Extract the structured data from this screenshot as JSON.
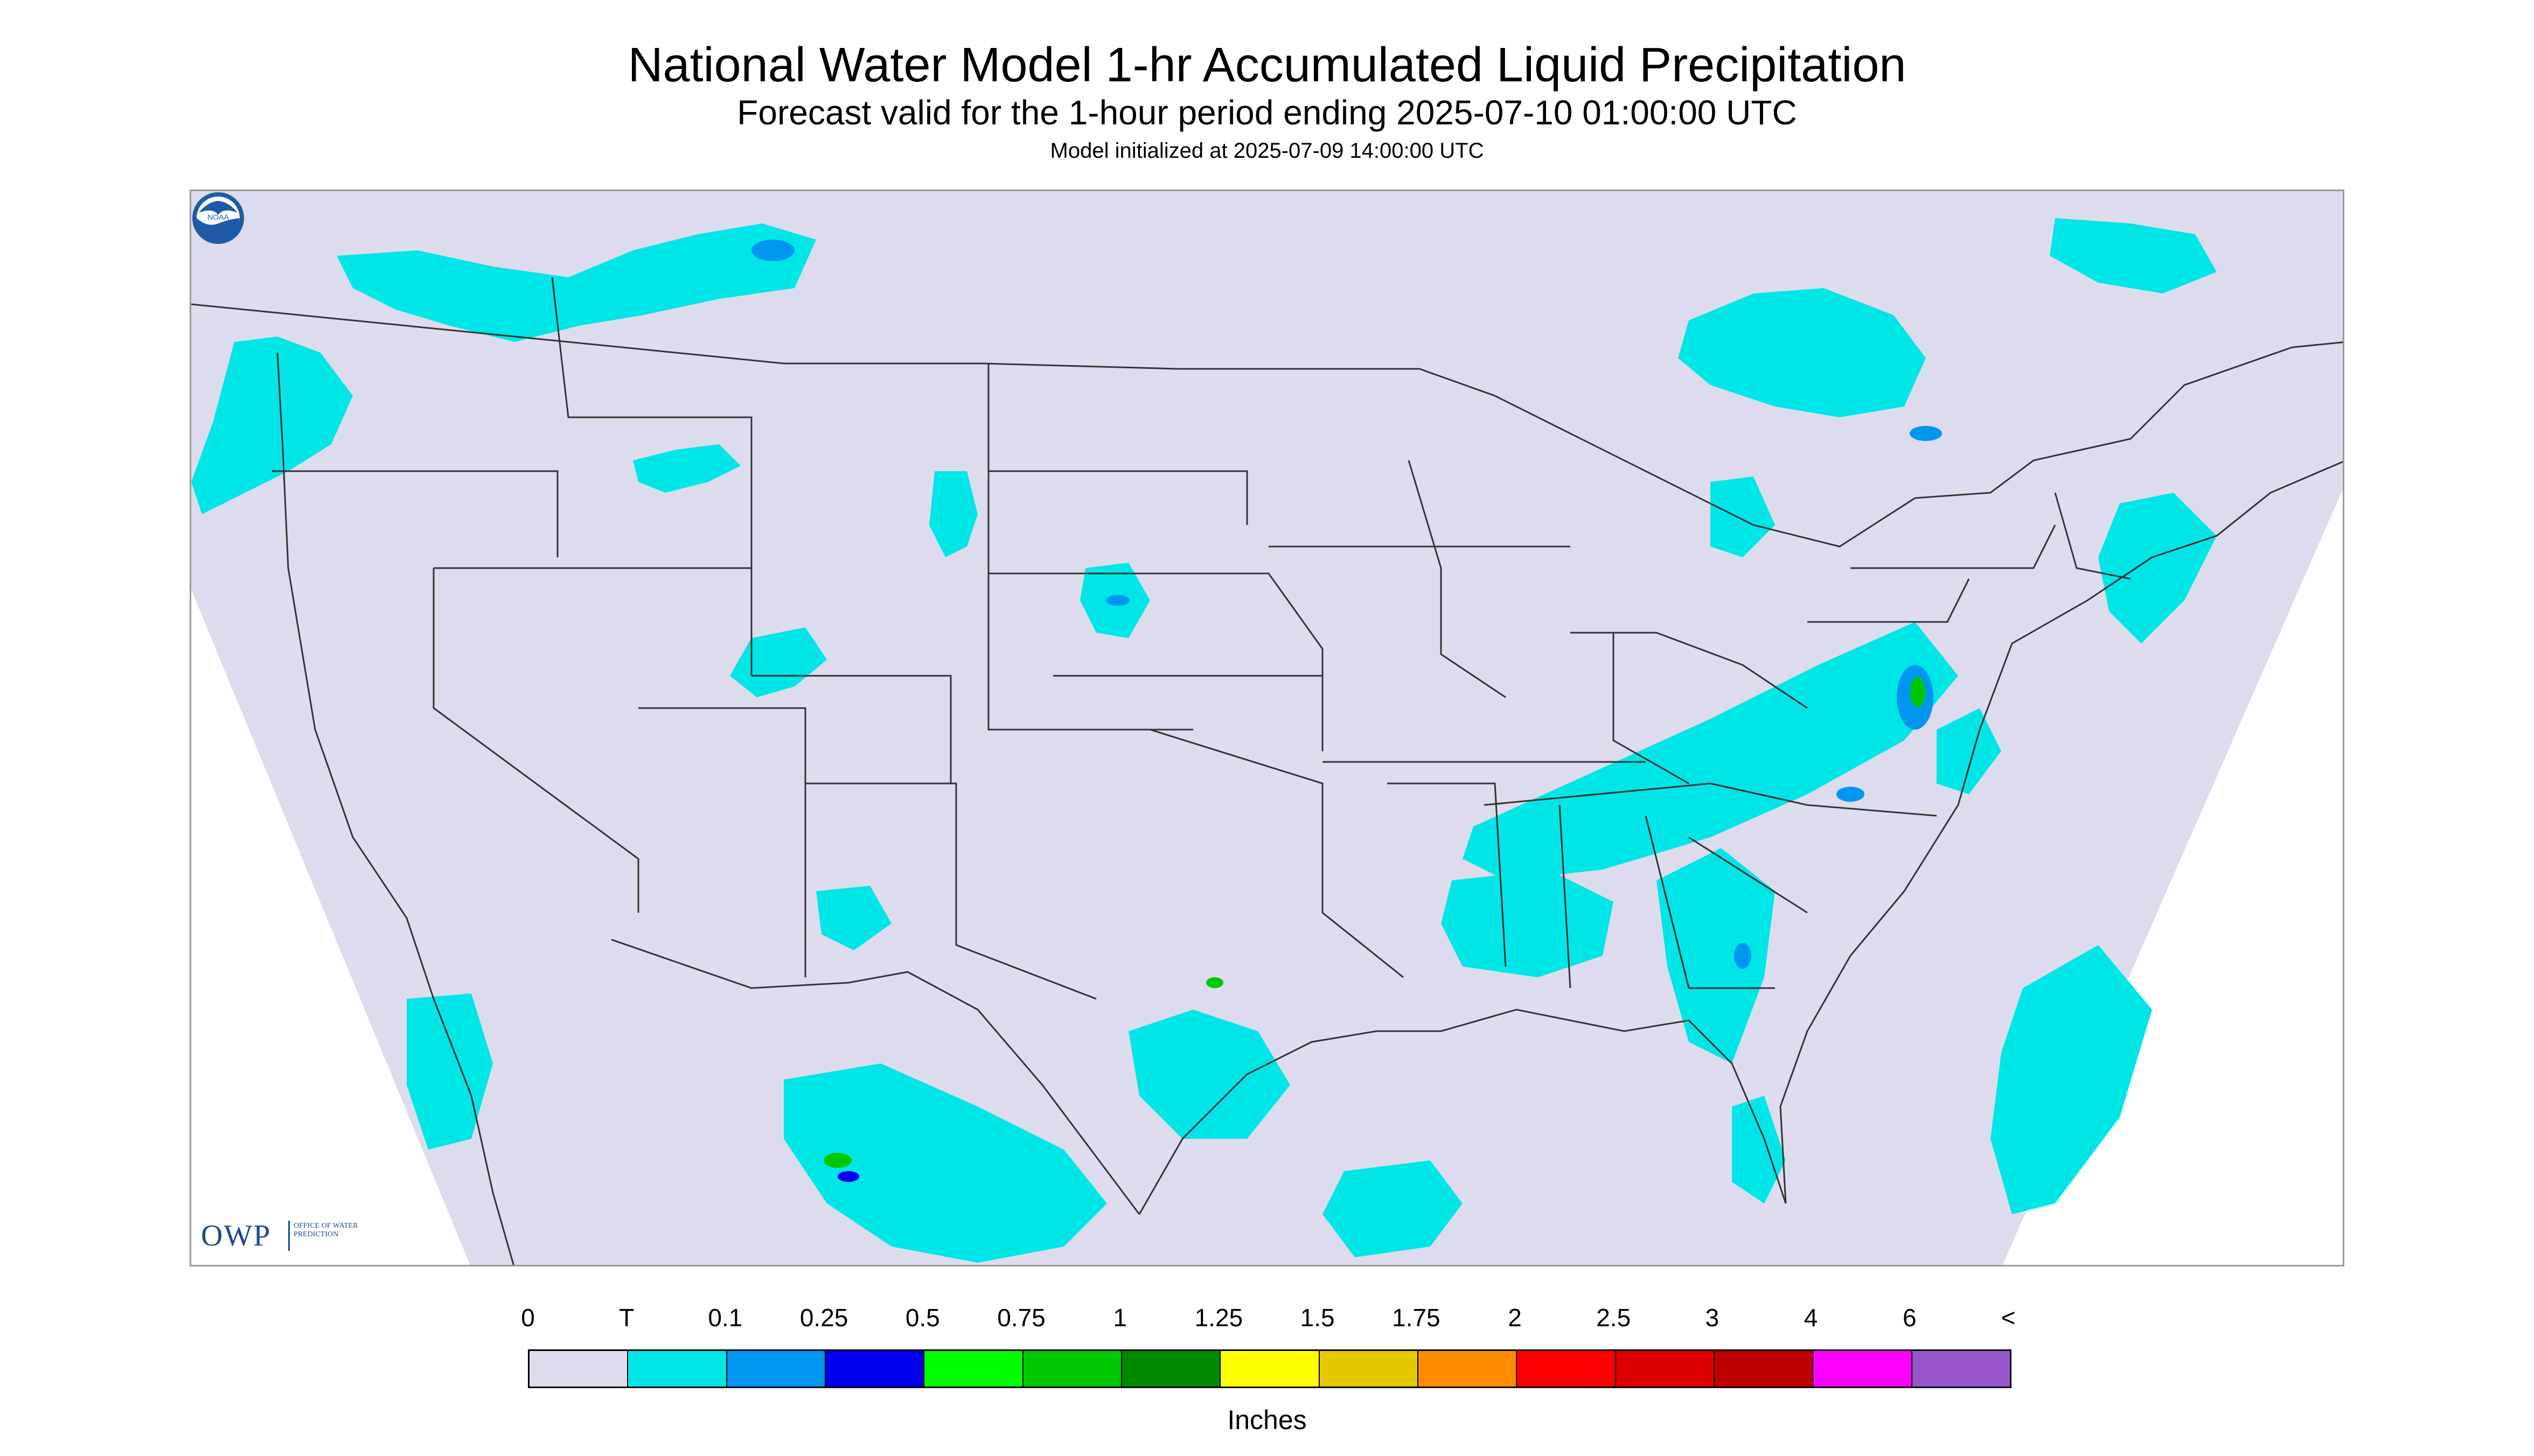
{
  "header": {
    "title": "National Water Model 1-hr Accumulated Liquid Precipitation",
    "subtitle": "Forecast valid for the 1-hour period ending 2025-07-10 01:00:00 UTC",
    "init_note": "Model initialized at 2025-07-09 14:00:00 UTC"
  },
  "logos": {
    "owp_big": "OWP",
    "owp_small": "OFFICE OF WATER PREDICTION",
    "noaa": "NOAA"
  },
  "legend": {
    "tick_labels": [
      "0",
      "T",
      "0.1",
      "0.25",
      "0.5",
      "0.75",
      "1",
      "1.25",
      "1.5",
      "1.75",
      "2",
      "2.5",
      "3",
      "4",
      "6",
      "<"
    ],
    "colors": [
      "#dcdcee",
      "#00e6e6",
      "#0096f0",
      "#0000ee",
      "#00ff00",
      "#00c800",
      "#008a00",
      "#ffff00",
      "#e6c800",
      "#ff8c00",
      "#ff0000",
      "#dc0000",
      "#be0000",
      "#ff00ff",
      "#9955cc"
    ],
    "units_label": "Inches"
  },
  "map": {
    "domain_fill": "#dcdcee",
    "outside_fill": "#ffffff",
    "border_color": "#333333",
    "precip_light": "#00e6e6",
    "precip_medium": "#0096f0",
    "precip_heavy": "#0000ee",
    "precip_green": "#00c800"
  }
}
